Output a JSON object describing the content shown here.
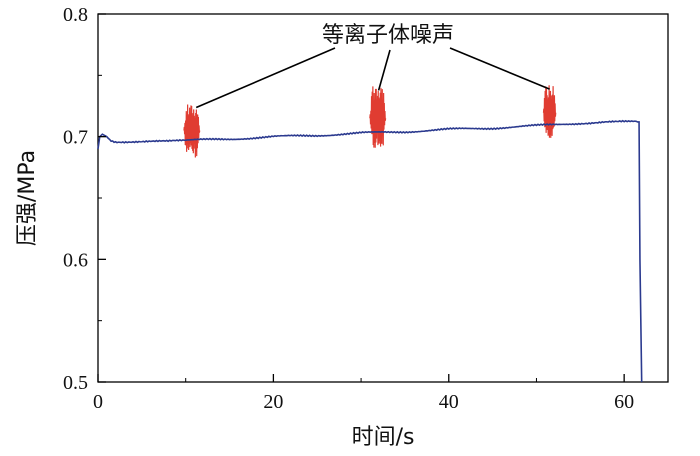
{
  "chart_data": {
    "type": "line",
    "xlabel": "时间/s",
    "ylabel": "压强/MPa",
    "xlim": [
      0,
      65
    ],
    "ylim": [
      0.5,
      0.8
    ],
    "x_ticks": [
      "0",
      "20",
      "40",
      "60"
    ],
    "y_ticks": [
      "0.5",
      "0.6",
      "0.7",
      "0.8"
    ],
    "grid": false,
    "series": [
      {
        "color": "#2b3a8f",
        "x": [
          0,
          0.2,
          0.5,
          1.0,
          1.5,
          2.0,
          3,
          5,
          8,
          10,
          15,
          20,
          25,
          30,
          35,
          40,
          45,
          50,
          55,
          58,
          60,
          61.7,
          61.8,
          62.0
        ],
        "y": [
          0.69,
          0.7,
          0.702,
          0.7,
          0.697,
          0.696,
          0.696,
          0.696,
          0.696,
          0.697,
          0.698,
          0.7,
          0.701,
          0.703,
          0.704,
          0.706,
          0.707,
          0.709,
          0.711,
          0.712,
          0.712,
          0.712,
          0.6,
          0.5
        ]
      }
    ],
    "noise_bursts": [
      {
        "x_start": 9.8,
        "x_end": 11.6,
        "y_min": 0.683,
        "y_max": 0.727,
        "color": "#e03c31"
      },
      {
        "x_start": 31.0,
        "x_end": 32.8,
        "y_min": 0.689,
        "y_max": 0.741,
        "color": "#e03c31"
      },
      {
        "x_start": 50.8,
        "x_end": 52.2,
        "y_min": 0.697,
        "y_max": 0.742,
        "color": "#e03c31"
      }
    ],
    "annotation": {
      "text": "等离子体噪声",
      "targets_x": [
        11.2,
        32.0,
        51.5
      ]
    }
  }
}
